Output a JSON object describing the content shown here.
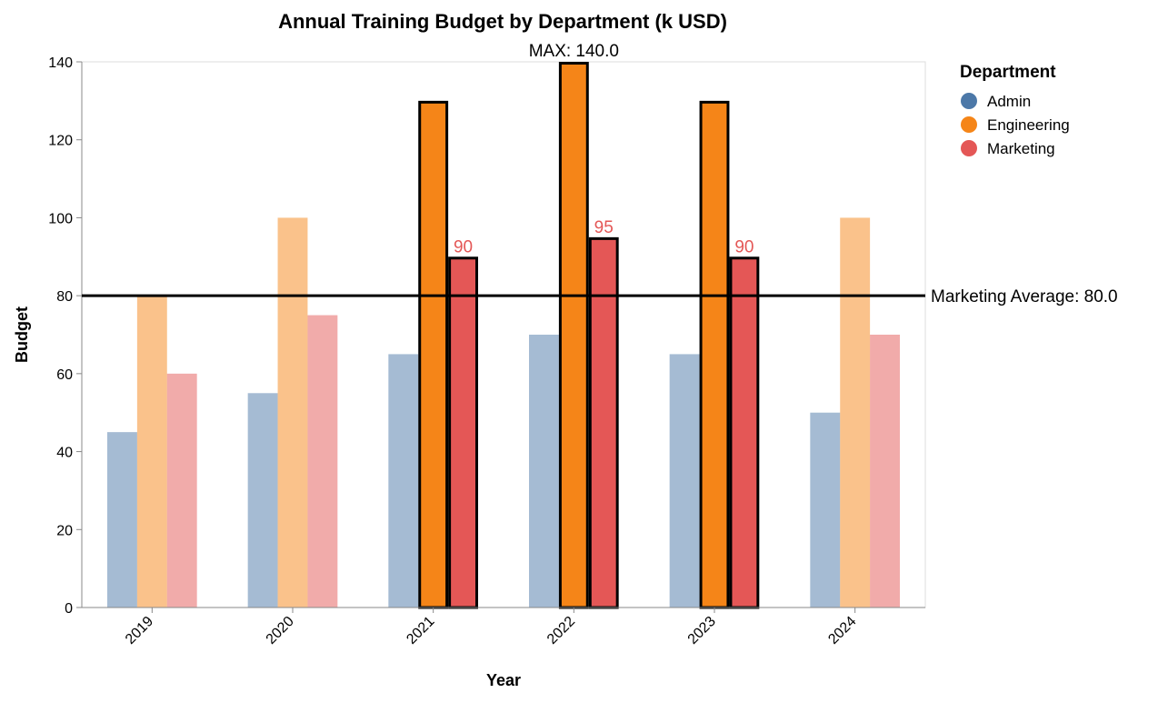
{
  "chart_data": {
    "type": "bar",
    "title": "Annual Training Budget by Department (k USD)",
    "xlabel": "Year",
    "ylabel": "Budget",
    "categories": [
      "2019",
      "2020",
      "2021",
      "2022",
      "2023",
      "2024"
    ],
    "ylim": [
      0,
      140
    ],
    "yticks": [
      0,
      20,
      40,
      60,
      80,
      100,
      120,
      140
    ],
    "series": [
      {
        "name": "Admin",
        "color": "#4c78a8",
        "values": [
          45,
          55,
          65,
          70,
          65,
          50
        ]
      },
      {
        "name": "Engineering",
        "color": "#f58518",
        "values": [
          80,
          100,
          130,
          140,
          130,
          100
        ]
      },
      {
        "name": "Marketing",
        "color": "#e45756",
        "values": [
          60,
          75,
          90,
          95,
          90,
          70
        ]
      }
    ],
    "highlighted_years": [
      "2021",
      "2022",
      "2023"
    ],
    "highlighted_series": [
      "Engineering",
      "Marketing"
    ],
    "data_labels": [
      {
        "series": "Marketing",
        "category": "2021",
        "text": "90"
      },
      {
        "series": "Marketing",
        "category": "2022",
        "text": "95"
      },
      {
        "series": "Marketing",
        "category": "2023",
        "text": "90"
      }
    ],
    "reference_line": {
      "value": 80,
      "label": "Marketing Average: 80.0"
    },
    "max_annotation": {
      "value": 140,
      "category": "2022",
      "label": "MAX: 140.0"
    },
    "legend": {
      "title": "Department",
      "placement": "top-right"
    },
    "grid": false
  }
}
